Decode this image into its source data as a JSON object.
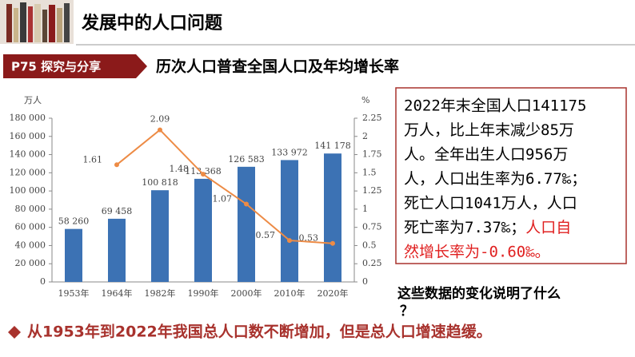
{
  "header": {
    "title": "发展中的人口问题"
  },
  "section": {
    "tag": "P75 探究与分享",
    "title": "历次人口普查全国人口及年均增长率"
  },
  "chart_data": {
    "type": "bar-line",
    "y_label": "万人",
    "y2_label": "%",
    "grid": false,
    "categories": [
      "1953年",
      "1964年",
      "1982年",
      "1990年",
      "2000年",
      "2010年",
      "2020年"
    ],
    "ylim": [
      0,
      180000
    ],
    "yticks": [
      {
        "value": 0,
        "label": "0"
      },
      {
        "value": 20000,
        "label": "20 000"
      },
      {
        "value": 40000,
        "label": "40 000"
      },
      {
        "value": 60000,
        "label": "60 000"
      },
      {
        "value": 80000,
        "label": "80 000"
      },
      {
        "value": 100000,
        "label": "100 000"
      },
      {
        "value": 120000,
        "label": "120 000"
      },
      {
        "value": 140000,
        "label": "140 000"
      },
      {
        "value": 160000,
        "label": "160 000"
      },
      {
        "value": 180000,
        "label": "180 000"
      }
    ],
    "y2lim": [
      0,
      2.25
    ],
    "y2ticks": [
      0,
      0.25,
      0.5,
      0.75,
      1,
      1.25,
      1.5,
      1.75,
      2,
      2.25
    ],
    "series": [
      {
        "type": "bar",
        "color": "#3c72b4",
        "values": [
          58260,
          69458,
          100818,
          113368,
          126583,
          133972,
          141178
        ],
        "value_labels": [
          "58 260",
          "69 458",
          "100 818",
          "113 368",
          "126 583",
          "133 972",
          "141 178"
        ]
      },
      {
        "type": "line",
        "axis": "y2",
        "color": "#ed8b45",
        "values": [
          null,
          1.61,
          2.09,
          1.48,
          1.07,
          0.57,
          0.53
        ]
      }
    ]
  },
  "box": {
    "lines": [
      "2022年末全国人口141175",
      "万人，比上年末减少85万",
      "人。全年出生人口956万",
      "人，人口出生率为6.77‰；",
      "死亡人口1041万人，人口",
      "死亡率为7.37‰；"
    ],
    "red_lines": [
      "人口自",
      "然增长率为-0.60‰。"
    ]
  },
  "question": {
    "line1": "这些数据的变化说明了什么",
    "line2": "？"
  },
  "conclusion": "从1953年到2022年我国总人口数不断增加，但是总人口增速趋缓。"
}
